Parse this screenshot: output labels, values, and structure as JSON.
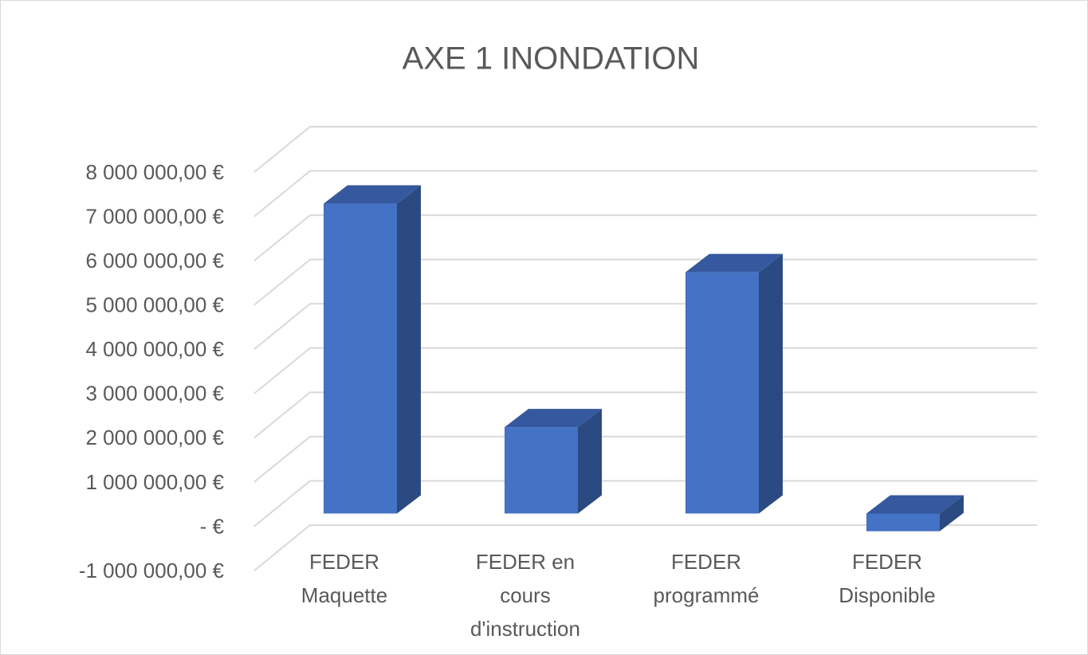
{
  "chart_data": {
    "type": "bar3d",
    "title": "AXE 1 INONDATION",
    "categories": [
      "FEDER Maquette",
      "FEDER en cours d'instruction",
      "FEDER programmé",
      "FEDER Disponible"
    ],
    "values": [
      7000000,
      1950000,
      5450000,
      -400000
    ],
    "color": "#4472c4",
    "ylim": [
      -1000000,
      8000000
    ],
    "yticks": [
      {
        "value": 8000000,
        "label": "8 000 000,00 €"
      },
      {
        "value": 7000000,
        "label": "7 000 000,00 €"
      },
      {
        "value": 6000000,
        "label": "6 000 000,00 €"
      },
      {
        "value": 5000000,
        "label": "5 000 000,00 €"
      },
      {
        "value": 4000000,
        "label": "4 000 000,00 €"
      },
      {
        "value": 3000000,
        "label": "3 000 000,00 €"
      },
      {
        "value": 2000000,
        "label": "2 000 000,00 €"
      },
      {
        "value": 1000000,
        "label": "1 000 000,00 €"
      },
      {
        "value": 0,
        "label": "-   €"
      },
      {
        "value": -1000000,
        "label": "-1 000 000,00 €"
      }
    ],
    "grid": true
  }
}
